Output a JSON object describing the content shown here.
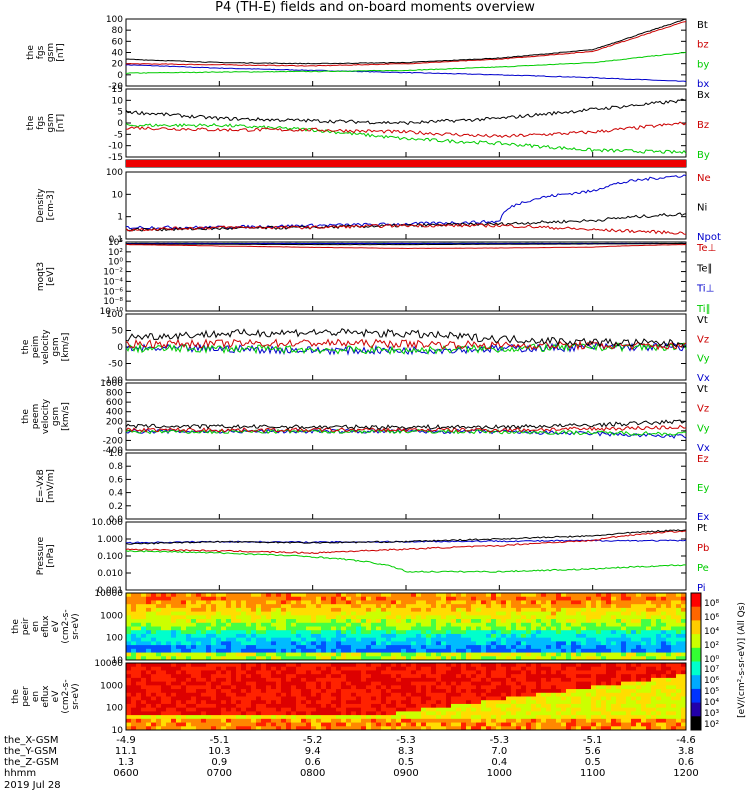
{
  "title": "P4 (TH-E) fields and on-board moments overview",
  "footer_date": "2019 Jul 28",
  "panels": [
    {
      "id": "fgs_gsm",
      "ylabel": [
        "the",
        "fgs",
        "gsm",
        "[nT]"
      ],
      "ticks": [
        "100",
        "80",
        "60",
        "40",
        "20",
        "0",
        "-20"
      ],
      "legend": [
        {
          "label": "Bt",
          "color": "#000000"
        },
        {
          "label": "bz",
          "color": "#cc0000"
        },
        {
          "label": "by",
          "color": "#00cc00"
        },
        {
          "label": "bx",
          "color": "#0000cc"
        }
      ]
    },
    {
      "id": "fgs_dsl",
      "ylabel": [
        "the",
        "fgs",
        "gsm",
        "[nT]"
      ],
      "ticks": [
        "15",
        "10",
        "5",
        "0",
        "-5",
        "-10",
        "-15"
      ],
      "legend": [
        {
          "label": "Bx",
          "color": "#000000"
        },
        {
          "label": "Bz",
          "color": "#cc0000"
        },
        {
          "label": "By",
          "color": "#00cc00"
        }
      ]
    },
    {
      "id": "mode_bar",
      "ylabel": [],
      "ticks": [],
      "legend": []
    },
    {
      "id": "density",
      "ylabel": [
        "Density",
        "[cm-3]"
      ],
      "ticks": [
        "100",
        "10",
        "1",
        "0.1"
      ],
      "legend": [
        {
          "label": "Ne",
          "color": "#cc0000"
        },
        {
          "label": "Ni",
          "color": "#000000"
        },
        {
          "label": "Npot",
          "color": "#0000cc"
        }
      ]
    },
    {
      "id": "temp",
      "ylabel": [
        "moqt3",
        "[eV]"
      ],
      "ticks": [
        "10⁴",
        "10²",
        "10⁰",
        "10⁻²",
        "10⁻⁴",
        "10⁻⁶",
        "10⁻⁸",
        "10⁻¹⁰"
      ],
      "legend": [
        {
          "label": "Te⊥",
          "color": "#cc0000"
        },
        {
          "label": "Te∥",
          "color": "#000000"
        },
        {
          "label": "Ti⊥",
          "color": "#0000cc"
        },
        {
          "label": "Ti∥",
          "color": "#00cc00"
        }
      ]
    },
    {
      "id": "peim_vel",
      "ylabel": [
        "the",
        "peim",
        "velocity",
        "gsm",
        "[km/s]"
      ],
      "ticks": [
        "100",
        "50",
        "0",
        "-50",
        "-100"
      ],
      "legend": [
        {
          "label": "Vt",
          "color": "#000000"
        },
        {
          "label": "Vz",
          "color": "#cc0000"
        },
        {
          "label": "Vy",
          "color": "#00cc00"
        },
        {
          "label": "Vx",
          "color": "#0000cc"
        }
      ]
    },
    {
      "id": "peem_vel",
      "ylabel": [
        "the",
        "peem",
        "velocity",
        "gsm",
        "[km/s]"
      ],
      "ticks": [
        "1000",
        "800",
        "600",
        "400",
        "200",
        "0",
        "-200",
        "-400"
      ],
      "legend": [
        {
          "label": "Vt",
          "color": "#000000"
        },
        {
          "label": "Vz",
          "color": "#cc0000"
        },
        {
          "label": "Vy",
          "color": "#00cc00"
        },
        {
          "label": "Vx",
          "color": "#0000cc"
        }
      ]
    },
    {
      "id": "efield",
      "ylabel": [
        "E=-VxB",
        "[mV/m]"
      ],
      "ticks": [
        "1.0",
        "0.8",
        "0.6",
        "0.4",
        "0.2",
        "0.0"
      ],
      "legend": [
        {
          "label": "Ez",
          "color": "#cc0000"
        },
        {
          "label": "Ey",
          "color": "#00cc00"
        },
        {
          "label": "Ex",
          "color": "#0000cc"
        }
      ]
    },
    {
      "id": "pressure",
      "ylabel": [
        "Pressure",
        "[nPa]"
      ],
      "ticks": [
        "10.000",
        "1.000",
        "0.100",
        "0.010",
        "0.001"
      ],
      "legend": [
        {
          "label": "Pt",
          "color": "#000000"
        },
        {
          "label": "Pb",
          "color": "#cc0000"
        },
        {
          "label": "Pe",
          "color": "#00cc00"
        },
        {
          "label": "Pi",
          "color": "#0000cc"
        }
      ]
    },
    {
      "id": "peir_spec",
      "ylabel": [
        "the",
        "peir",
        "en",
        "eflux",
        "eV",
        "(cm2-s-",
        "sr-eV)"
      ],
      "ticks": [
        "10000",
        "1000",
        "100",
        "10"
      ],
      "legend": []
    },
    {
      "id": "peer_spec",
      "ylabel": [
        "the",
        "peer",
        "en",
        "eflux",
        "eV",
        "(cm2-s-",
        "sr-eV)"
      ],
      "ticks": [
        "10000",
        "1000",
        "100",
        "10"
      ],
      "legend": []
    }
  ],
  "colorbar": {
    "label": "[eV/(cm²-s-sr-eV)] (All Qs)",
    "top_ticks": [
      "10⁸",
      "10⁶",
      "10⁴",
      "10²",
      "10⁰"
    ],
    "bottom_ticks": [
      "10⁷",
      "10⁶",
      "10⁵",
      "10⁴",
      "10³",
      "10²"
    ]
  },
  "x_axis": {
    "row_labels": [
      "the_X-GSM",
      "the_Y-GSM",
      "the_Z-GSM",
      "hhmm"
    ],
    "columns": [
      {
        "x": "-4.9",
        "y": "11.1",
        "z": "1.3",
        "hhmm": "0600"
      },
      {
        "x": "-5.1",
        "y": "10.3",
        "z": "0.9",
        "hhmm": "0700"
      },
      {
        "x": "-5.2",
        "y": "9.4",
        "z": "0.6",
        "hhmm": "0800"
      },
      {
        "x": "-5.3",
        "y": "8.3",
        "z": "0.5",
        "hhmm": "0900"
      },
      {
        "x": "-5.3",
        "y": "7.0",
        "z": "0.4",
        "hhmm": "1000"
      },
      {
        "x": "-5.1",
        "y": "5.6",
        "z": "0.5",
        "hhmm": "1100"
      },
      {
        "x": "-4.6",
        "y": "3.8",
        "z": "0.6",
        "hhmm": "1200"
      }
    ]
  },
  "chart_data": {
    "type": "line",
    "title": "P4 (TH-E) fields and on-board moments overview",
    "x_label": "hhmm",
    "x_ticks": [
      "0600",
      "0700",
      "0800",
      "0900",
      "1000",
      "1100",
      "1200"
    ],
    "x_range_hours": [
      6,
      12
    ],
    "series_samples_hours": [
      6,
      7,
      8,
      9,
      10,
      11,
      12
    ],
    "fgs_gsm_nT": {
      "ylim": [
        -20,
        100
      ],
      "series": [
        {
          "name": "Bt",
          "color": "#000000",
          "values": [
            28,
            22,
            20,
            22,
            30,
            45,
            100
          ]
        },
        {
          "name": "bz",
          "color": "#cc0000",
          "values": [
            20,
            18,
            16,
            20,
            28,
            42,
            96
          ]
        },
        {
          "name": "by",
          "color": "#00cc00",
          "values": [
            3,
            5,
            6,
            8,
            14,
            22,
            40
          ]
        },
        {
          "name": "bx",
          "color": "#0000cc",
          "values": [
            18,
            12,
            8,
            4,
            0,
            -5,
            -12
          ]
        }
      ]
    },
    "fgs_second_nT": {
      "ylim": [
        -15,
        15
      ],
      "series": [
        {
          "name": "Bx",
          "color": "#000000",
          "values": [
            5,
            2,
            1,
            0,
            2,
            6,
            10
          ]
        },
        {
          "name": "Bz",
          "color": "#cc0000",
          "values": [
            -2,
            -3,
            -3,
            -4,
            -6,
            -4,
            0
          ]
        },
        {
          "name": "By",
          "color": "#00cc00",
          "values": [
            -1,
            -1,
            -3,
            -7,
            -9,
            -12,
            -13
          ]
        }
      ]
    },
    "density_cm3": {
      "ylim": [
        0.1,
        300
      ],
      "scale": "log",
      "series": [
        {
          "name": "Ne",
          "color": "#cc0000",
          "values": [
            0.3,
            0.4,
            0.4,
            0.5,
            0.5,
            0.3,
            0.2
          ]
        },
        {
          "name": "Ni",
          "color": "#000000",
          "values": [
            0.3,
            0.35,
            0.4,
            0.5,
            0.6,
            0.9,
            2
          ]
        },
        {
          "name": "Npot",
          "color": "#0000cc",
          "values": [
            0.4,
            0.4,
            0.5,
            0.6,
            0.8,
            30,
            200
          ]
        }
      ]
    },
    "temperature_eV": {
      "ylim": [
        1e-10,
        10000
      ],
      "scale": "log",
      "series": [
        {
          "name": "Te⊥",
          "color": "#cc0000",
          "values": [
            3000,
            1500,
            800,
            500,
            600,
            900,
            3000
          ]
        },
        {
          "name": "Te∥",
          "color": "#000000",
          "values": [
            4000,
            3500,
            3000,
            3000,
            3500,
            4000,
            5000
          ]
        },
        {
          "name": "Ti⊥",
          "color": "#0000cc",
          "values": [
            5000,
            5000,
            5000,
            5000,
            5000,
            5000,
            5000
          ]
        },
        {
          "name": "Ti∥",
          "color": "#00cc00",
          "values": [
            5000,
            5000,
            5000,
            5000,
            5000,
            5000,
            5000
          ]
        }
      ]
    },
    "peim_velocity_kms": {
      "ylim": [
        -100,
        100
      ],
      "series": [
        {
          "name": "Vt",
          "color": "#000000",
          "values": [
            30,
            40,
            45,
            40,
            25,
            15,
            10
          ]
        },
        {
          "name": "Vz",
          "color": "#cc0000",
          "values": [
            10,
            10,
            12,
            10,
            5,
            5,
            2
          ]
        },
        {
          "name": "Vy",
          "color": "#00cc00",
          "values": [
            -5,
            -5,
            -8,
            -10,
            -5,
            0,
            0
          ]
        },
        {
          "name": "Vx",
          "color": "#0000cc",
          "values": [
            -5,
            -5,
            -10,
            -10,
            -5,
            0,
            0
          ]
        }
      ]
    },
    "peem_velocity_kms": {
      "ylim": [
        -400,
        1000
      ],
      "series": [
        {
          "name": "Vt",
          "color": "#000000",
          "values": [
            100,
            90,
            80,
            80,
            80,
            120,
            200
          ]
        },
        {
          "name": "Vz",
          "color": "#cc0000",
          "values": [
            20,
            20,
            20,
            20,
            20,
            40,
            80
          ]
        },
        {
          "name": "Vy",
          "color": "#00cc00",
          "values": [
            -20,
            -20,
            -10,
            -10,
            -20,
            -40,
            -60
          ]
        },
        {
          "name": "Vx",
          "color": "#0000cc",
          "values": [
            -10,
            -10,
            -10,
            -10,
            -20,
            -60,
            -120
          ]
        }
      ]
    },
    "efield_mVm": {
      "ylim": [
        0,
        1
      ],
      "series": []
    },
    "pressure_nPa": {
      "ylim": [
        0.001,
        10
      ],
      "scale": "log",
      "series": [
        {
          "name": "Pt",
          "color": "#000000",
          "values": [
            0.5,
            0.7,
            0.6,
            0.7,
            1.0,
            1.5,
            3.5
          ]
        },
        {
          "name": "Pb",
          "color": "#cc0000",
          "values": [
            0.25,
            0.2,
            0.15,
            0.25,
            0.4,
            0.8,
            3
          ]
        },
        {
          "name": "Pe",
          "color": "#00cc00",
          "values": [
            0.2,
            0.15,
            0.09,
            0.012,
            0.012,
            0.017,
            0.03
          ]
        },
        {
          "name": "Pi",
          "color": "#0000cc",
          "values": [
            0.6,
            0.7,
            0.65,
            0.7,
            0.75,
            0.8,
            0.8
          ]
        }
      ]
    }
  }
}
